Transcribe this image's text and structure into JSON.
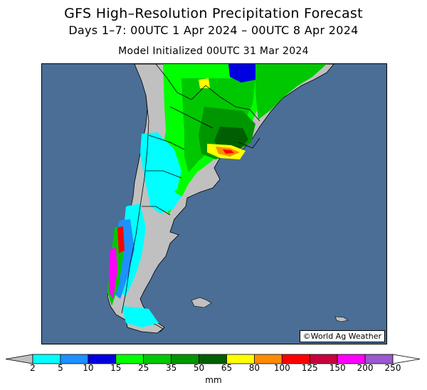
{
  "title": "GFS High–Resolution Precipitation Forecast",
  "subtitle": "Days 1–7: 00UTC 1 Apr 2024 – 00UTC 8 Apr 2024",
  "initialized": "Model Initialized 00UTC 31 Mar 2024",
  "credit": "©World Ag Weather",
  "colorbar": {
    "labels": [
      "2",
      "5",
      "10",
      "15",
      "25",
      "35",
      "50",
      "65",
      "80",
      "100",
      "125",
      "150",
      "200",
      "250"
    ],
    "colors": [
      "#00ffff",
      "#1e90ff",
      "#0000e0",
      "#00ff00",
      "#00c800",
      "#009600",
      "#005f00",
      "#ffff00",
      "#ff8c00",
      "#ff0000",
      "#c8003c",
      "#ff00ff",
      "#9b59d0"
    ],
    "below_color": "#c0c0c0",
    "above_color": "#ffffff",
    "unit": "mm"
  },
  "colors": {
    "ocean": "#4a6e96",
    "land_dry": "#c0c0c0"
  }
}
